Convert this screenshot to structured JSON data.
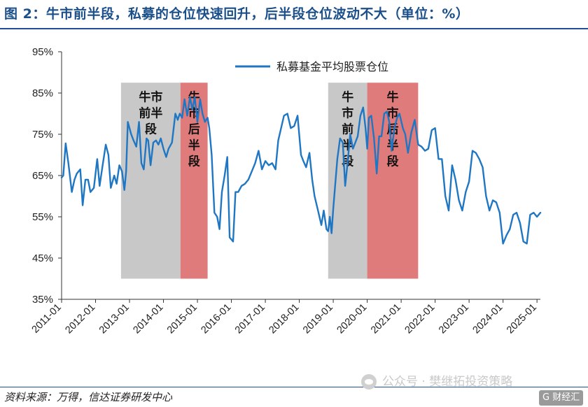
{
  "header": {
    "title": "图 2：牛市前半段，私募的仓位快速回升，后半段仓位波动不大（单位：%）"
  },
  "footer": {
    "source": "资料来源：万得，信达证券研发中心",
    "watermark": "公众号 · 樊继拓投资策略",
    "badge": "G 财经汇"
  },
  "chart_data": {
    "type": "line",
    "title": "图 2：牛市前半段，私募的仓位快速回升，后半段仓位波动不大（单位：%）",
    "xlabel": "",
    "ylabel": "",
    "ylim": [
      35,
      95
    ],
    "yticks": [
      "35%",
      "45%",
      "55%",
      "65%",
      "75%",
      "85%",
      "95%"
    ],
    "yticks_values": [
      35,
      45,
      55,
      65,
      75,
      85,
      95
    ],
    "xticks": [
      "2011-01",
      "2012-01",
      "2013-01",
      "2014-01",
      "2015-01",
      "2016-01",
      "2017-01",
      "2018-01",
      "2019-01",
      "2020-01",
      "2021-01",
      "2022-01",
      "2023-01",
      "2024-01",
      "2025-01"
    ],
    "xticks_values": [
      2011,
      2012,
      2013,
      2014,
      2015,
      2016,
      2017,
      2018,
      2019,
      2020,
      2021,
      2022,
      2023,
      2024,
      2025
    ],
    "xlim": [
      2011,
      2025.1
    ],
    "legend": {
      "position": "top-center",
      "entries": [
        "私募基金平均股票仓位"
      ]
    },
    "color": "#1f77c4",
    "bands": [
      {
        "label": "牛市前半段",
        "lines": [
          "牛市",
          "前半",
          "段"
        ],
        "start": 2012.75,
        "end": 2014.5,
        "color": "#c8c8c8"
      },
      {
        "label": "牛市后半段",
        "lines": [
          "牛",
          "市",
          "后",
          "半",
          "段"
        ],
        "start": 2014.5,
        "end": 2015.3,
        "color": "#e07b7b"
      },
      {
        "label": "牛市前半段",
        "lines": [
          "牛",
          "市",
          "前",
          "半",
          "段"
        ],
        "start": 2018.85,
        "end": 2020.0,
        "color": "#c8c8c8"
      },
      {
        "label": "牛市后半段",
        "lines": [
          "牛",
          "市",
          "后",
          "半",
          "段"
        ],
        "start": 2020.0,
        "end": 2021.5,
        "color": "#e07b7b"
      }
    ],
    "band_ylim": [
      40,
      87.5
    ],
    "series": [
      {
        "name": "私募基金平均股票仓位",
        "x": [
          2011.0,
          2011.05,
          2011.12,
          2011.2,
          2011.3,
          2011.38,
          2011.45,
          2011.55,
          2011.62,
          2011.7,
          2011.78,
          2011.85,
          2011.95,
          2012.05,
          2012.12,
          2012.2,
          2012.3,
          2012.38,
          2012.45,
          2012.55,
          2012.62,
          2012.7,
          2012.78,
          2012.85,
          2012.9,
          2012.95,
          2013.05,
          2013.12,
          2013.2,
          2013.28,
          2013.35,
          2013.42,
          2013.5,
          2013.55,
          2013.62,
          2013.7,
          2013.78,
          2013.85,
          2013.92,
          2014.0,
          2014.08,
          2014.15,
          2014.25,
          2014.35,
          2014.42,
          2014.48,
          2014.55,
          2014.62,
          2014.7,
          2014.78,
          2014.85,
          2014.92,
          2015.0,
          2015.08,
          2015.15,
          2015.22,
          2015.3,
          2015.35,
          2015.42,
          2015.5,
          2015.58,
          2015.65,
          2015.72,
          2015.8,
          2015.88,
          2015.95,
          2016.05,
          2016.12,
          2016.2,
          2016.3,
          2016.4,
          2016.5,
          2016.6,
          2016.7,
          2016.8,
          2016.9,
          2017.0,
          2017.1,
          2017.2,
          2017.3,
          2017.38,
          2017.45,
          2017.55,
          2017.65,
          2017.75,
          2017.85,
          2017.95,
          2018.05,
          2018.12,
          2018.2,
          2018.3,
          2018.38,
          2018.45,
          2018.55,
          2018.65,
          2018.72,
          2018.8,
          2018.85,
          2018.9,
          2018.95,
          2019.0,
          2019.05,
          2019.12,
          2019.2,
          2019.28,
          2019.35,
          2019.42,
          2019.5,
          2019.58,
          2019.65,
          2019.72,
          2019.8,
          2019.88,
          2019.95,
          2020.0,
          2020.05,
          2020.12,
          2020.2,
          2020.28,
          2020.35,
          2020.42,
          2020.5,
          2020.58,
          2020.65,
          2020.72,
          2020.8,
          2020.88,
          2020.95,
          2021.05,
          2021.12,
          2021.2,
          2021.3,
          2021.4,
          2021.5,
          2021.6,
          2021.7,
          2021.8,
          2021.9,
          2022.0,
          2022.1,
          2022.2,
          2022.3,
          2022.4,
          2022.5,
          2022.6,
          2022.7,
          2022.8,
          2022.9,
          2023.0,
          2023.1,
          2023.2,
          2023.3,
          2023.4,
          2023.5,
          2023.6,
          2023.7,
          2023.8,
          2023.9,
          2024.0,
          2024.1,
          2024.2,
          2024.3,
          2024.4,
          2024.5,
          2024.6,
          2024.7,
          2024.8,
          2024.9,
          2025.0,
          2025.1
        ],
        "values": [
          64.5,
          65.0,
          72.8,
          68.0,
          61.0,
          64.0,
          65.5,
          66.5,
          57.8,
          64.0,
          64.0,
          61.0,
          62.0,
          69.0,
          62.5,
          67.0,
          72.5,
          70.0,
          62.0,
          65.0,
          63.0,
          67.5,
          66.0,
          61.5,
          66.0,
          78.0,
          75.0,
          73.5,
          72.0,
          78.0,
          68.0,
          66.5,
          74.0,
          73.5,
          67.5,
          73.0,
          73.5,
          72.5,
          74.0,
          71.5,
          69.5,
          71.5,
          73.0,
          80.0,
          78.5,
          80.0,
          79.0,
          83.5,
          79.5,
          84.0,
          81.0,
          84.0,
          78.0,
          83.5,
          80.0,
          78.0,
          79.0,
          76.5,
          70.0,
          56.0,
          55.0,
          52.0,
          61.0,
          65.0,
          69.5,
          50.0,
          49.0,
          61.0,
          61.0,
          62.5,
          63.0,
          64.0,
          66.0,
          68.0,
          71.0,
          66.5,
          68.5,
          67.5,
          68.0,
          66.5,
          73.5,
          76.0,
          79.5,
          80.0,
          76.5,
          77.0,
          79.5,
          70.0,
          68.5,
          67.0,
          70.5,
          64.0,
          60.0,
          56.5,
          53.0,
          56.5,
          52.0,
          51.5,
          55.0,
          51.0,
          57.0,
          62.0,
          69.0,
          74.0,
          73.0,
          62.5,
          68.0,
          75.0,
          71.5,
          73.0,
          74.5,
          79.5,
          81.5,
          76.5,
          71.5,
          79.0,
          79.5,
          74.0,
          65.5,
          74.5,
          74.5,
          80.0,
          80.5,
          78.0,
          71.0,
          76.5,
          79.0,
          80.0,
          76.5,
          75.0,
          70.5,
          75.5,
          78.5,
          72.5,
          72.0,
          71.0,
          71.5,
          76.0,
          76.5,
          69.0,
          69.0,
          60.0,
          56.5,
          67.5,
          64.0,
          59.0,
          56.5,
          61.0,
          63.5,
          71.0,
          70.5,
          69.0,
          67.0,
          60.0,
          56.5,
          59.0,
          58.5,
          56.0,
          48.5,
          50.5,
          52.0,
          55.5,
          56.0,
          53.5,
          49.0,
          48.5,
          55.5,
          56.0,
          55.0,
          56.0
        ]
      }
    ]
  }
}
